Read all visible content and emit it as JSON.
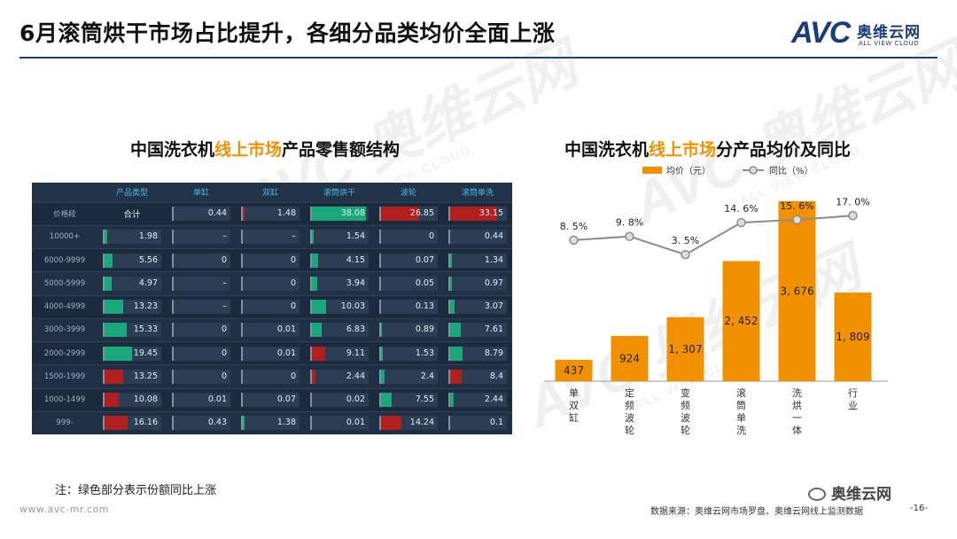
{
  "header": {
    "title": "6月滚筒烘干市场占比提升，各细分品类均价全面上涨"
  },
  "logo": {
    "wordmark": "AVC",
    "cn": "奥维云网",
    "en": "ALL VIEW CLOUD"
  },
  "watermark": {
    "main": "AVC 奥维云网",
    "sub": "ALL VIEW CLOUD"
  },
  "left_chart": {
    "title_pre": "中国洗衣机",
    "title_hl": "线上市场",
    "title_post": "产品零售额结构"
  },
  "right_chart": {
    "title_pre": "中国洗衣机",
    "title_hl": "线上市场",
    "title_post": "分产品均价及同比"
  },
  "colors": {
    "accent": "#f29100",
    "bar": "#f29100",
    "line": "#8c8c8c",
    "brand": "#1b3d7a",
    "table_up": "#1aa77a",
    "table_down": "#b21f1f"
  },
  "chart_data": [
    {
      "type": "table",
      "columns": [
        "产品类型",
        "单缸",
        "双缸",
        "滚筒烘干",
        "波轮",
        "滚筒单洗"
      ],
      "rows": [
        {
          "price": "价格段",
          "type": "合计",
          "values": [
            "0.44",
            "1.48",
            "38.08",
            "26.85",
            "33.15"
          ],
          "trend": [
            null,
            null,
            "up",
            "down",
            "down"
          ]
        },
        {
          "price": "10000+",
          "type": "1.98",
          "values": [
            "–",
            "–",
            "1.54",
            "0",
            "0.44"
          ],
          "trend": [
            null,
            null,
            null,
            null,
            null
          ]
        },
        {
          "price": "6000-9999",
          "type": "5.56",
          "values": [
            "0",
            "0",
            "4.15",
            "0.07",
            "1.34"
          ],
          "trend": [
            null,
            null,
            null,
            null,
            null
          ]
        },
        {
          "price": "5000-5999",
          "type": "4.97",
          "values": [
            "–",
            "0",
            "3.94",
            "0.05",
            "0.97"
          ],
          "trend": [
            null,
            null,
            null,
            null,
            null
          ]
        },
        {
          "price": "4000-4999",
          "type": "13.23",
          "values": [
            "–",
            "0",
            "10.03",
            "0.13",
            "3.07"
          ],
          "trend": [
            null,
            null,
            null,
            null,
            null
          ]
        },
        {
          "price": "3000-3999",
          "type": "15.33",
          "values": [
            "0",
            "0.01",
            "6.83",
            "0.89",
            "7.61"
          ],
          "trend": [
            null,
            null,
            null,
            null,
            null
          ]
        },
        {
          "price": "2000-2999",
          "type": "19.45",
          "values": [
            "0",
            "0.01",
            "9.11",
            "1.53",
            "8.79"
          ],
          "trend": [
            null,
            null,
            null,
            null,
            null
          ]
        },
        {
          "price": "1500-1999",
          "type": "13.25",
          "values": [
            "0",
            "0",
            "2.44",
            "2.4",
            "8.4"
          ],
          "trend": [
            null,
            null,
            null,
            null,
            null
          ]
        },
        {
          "price": "1000-1499",
          "type": "10.08",
          "values": [
            "0.01",
            "0.07",
            "0.02",
            "7.55",
            "2.44"
          ],
          "trend": [
            null,
            null,
            null,
            null,
            null
          ]
        },
        {
          "price": "999-",
          "type": "16.16",
          "values": [
            "0.43",
            "1.38",
            "0.01",
            "14.24",
            "0.1"
          ],
          "trend": [
            null,
            null,
            null,
            null,
            null
          ]
        }
      ]
    },
    {
      "type": "bar",
      "categories": [
        "单双缸",
        "定频波轮",
        "变频波轮",
        "滚筒单洗",
        "洗烘一体",
        "行业"
      ],
      "series": [
        {
          "name": "均价（元）",
          "type": "bar",
          "values": [
            437,
            924,
            1307,
            2452,
            3676,
            1809
          ],
          "labels": [
            "437",
            "924",
            "1, 307",
            "2, 452",
            "3, 676",
            "1, 809"
          ]
        },
        {
          "name": "同比（%）",
          "type": "line",
          "values": [
            8.5,
            9.8,
            3.5,
            14.6,
            15.6,
            17.0
          ],
          "labels": [
            "8. 5%",
            "9. 8%",
            "3. 5%",
            "14. 6%",
            "15. 6%",
            "17. 0%"
          ]
        }
      ],
      "ylim": [
        0,
        3800
      ],
      "y2lim": [
        -25,
        18
      ],
      "legend": "top"
    }
  ],
  "footer": {
    "note": "注：绿色部分表示份额同比上涨",
    "site": "www.avc-mr.com",
    "source": "数据来源：奥维云网市场罗盘、奥维云网线上监测数据",
    "page": "-16-",
    "wechat": "奥维云网"
  }
}
